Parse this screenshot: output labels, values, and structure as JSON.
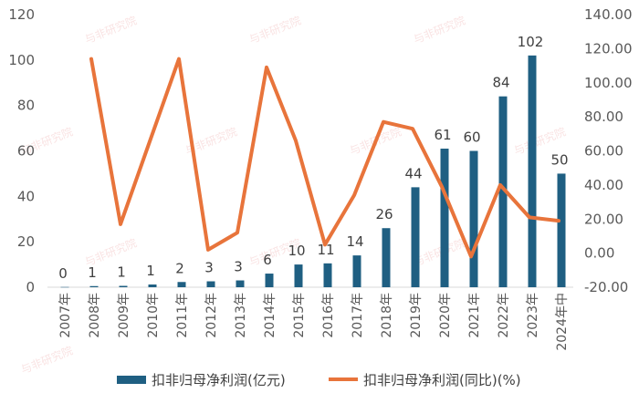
{
  "chart_data": {
    "type": "bar+line",
    "categories": [
      "2007年",
      "2008年",
      "2009年",
      "2010年",
      "2011年",
      "2012年",
      "2013年",
      "2014年",
      "2015年",
      "2016年",
      "2017年",
      "2018年",
      "2019年",
      "2020年",
      "2021年",
      "2022年",
      "2023年",
      "2024年中"
    ],
    "series": [
      {
        "name": "扣非归母净利润(亿元)",
        "type": "bar",
        "axis": "left",
        "values": [
          0.1,
          0.5,
          0.6,
          1.2,
          2.3,
          2.6,
          3,
          6,
          10,
          10.5,
          14,
          26,
          44,
          61,
          60,
          84,
          102,
          50
        ],
        "labels": [
          "0",
          "1",
          "1",
          "1",
          "2",
          "3",
          "3",
          "6",
          "10",
          "11",
          "14",
          "26",
          "44",
          "61",
          "60",
          "84",
          "102",
          "50"
        ]
      },
      {
        "name": "扣非归母净利润(同比)(%)",
        "type": "line",
        "axis": "right",
        "values": [
          null,
          114,
          17,
          null,
          114,
          2,
          12,
          109,
          66,
          5,
          34,
          77,
          73,
          39,
          -2,
          40,
          21,
          19
        ]
      }
    ],
    "left_axis": {
      "min": 0,
      "max": 120,
      "ticks": [
        "0",
        "20",
        "40",
        "60",
        "80",
        "100",
        "120"
      ]
    },
    "right_axis": {
      "min": -20,
      "max": 140,
      "ticks": [
        "-20.00",
        "0.00",
        "20.00",
        "40.00",
        "60.00",
        "80.00",
        "100.00",
        "120.00",
        "140.00"
      ]
    },
    "legend_position": "bottom",
    "grid": false
  },
  "colors": {
    "bar": "#1f5f82",
    "line": "#e8743b"
  },
  "watermark_text": "与非研究院"
}
